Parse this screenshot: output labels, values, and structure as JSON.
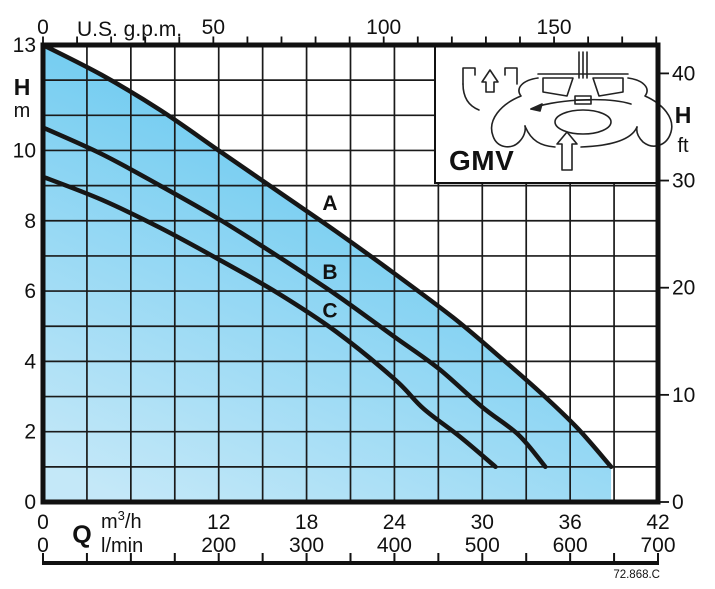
{
  "meta": {
    "model_label": "GMV",
    "ref_code": "72.868.C"
  },
  "chart_data": {
    "type": "line",
    "description": "Pump performance curves A, B, C: head H versus flow rate Q, shaded area under curve A",
    "grid": true,
    "area_fill": {
      "under_series": "A",
      "color_top": "#55C2EE",
      "color_bottom": "#C4E8F8"
    },
    "line_color": "#161616",
    "x_axes": [
      {
        "id": "gpm",
        "position": "top",
        "label": "U.S. g.p.m.",
        "labeled_ticks": [
          0,
          50,
          100,
          150
        ],
        "minor_tick_step": 10,
        "range": [
          0,
          180
        ]
      },
      {
        "id": "m3h",
        "position": "bottom",
        "symbol": "Q",
        "unit_pre": "m",
        "unit_sup": "3",
        "unit_post": "/h",
        "labeled_ticks": [
          0,
          12,
          18,
          24,
          30,
          36,
          42
        ],
        "grid_step": 3,
        "range": [
          0,
          42
        ]
      },
      {
        "id": "lmin",
        "position": "bottom",
        "unit": "l/min",
        "labeled_ticks": [
          0,
          200,
          300,
          400,
          500,
          600,
          700
        ],
        "scalebar_tick_step": 50,
        "range": [
          0,
          700
        ]
      }
    ],
    "y_axes": [
      {
        "id": "m",
        "position": "left",
        "symbol": "H",
        "unit": "m",
        "labeled_ticks": [
          13,
          10,
          8,
          6,
          4,
          2,
          0
        ],
        "grid_step": 1,
        "range": [
          0,
          13
        ]
      },
      {
        "id": "ft",
        "position": "right",
        "symbol": "H",
        "unit": "ft",
        "labeled_ticks": [
          40,
          30,
          20,
          10,
          0
        ],
        "range": [
          0,
          42.6
        ]
      }
    ],
    "series": [
      {
        "name": "A",
        "points_q_m3h_h_m": [
          [
            0,
            13
          ],
          [
            4,
            12.15
          ],
          [
            8,
            11.15
          ],
          [
            12,
            10
          ],
          [
            16,
            8.85
          ],
          [
            20,
            7.7
          ],
          [
            24,
            6.5
          ],
          [
            28,
            5.25
          ],
          [
            31,
            4.2
          ],
          [
            34,
            3.1
          ],
          [
            36.5,
            2.1
          ],
          [
            38.8,
            1
          ]
        ],
        "label_pos": {
          "q": 19.6,
          "h": 8.3
        }
      },
      {
        "name": "B",
        "points_q_m3h_h_m": [
          [
            0,
            10.65
          ],
          [
            4,
            9.9
          ],
          [
            8,
            9
          ],
          [
            12,
            8.05
          ],
          [
            16,
            7
          ],
          [
            20,
            5.9
          ],
          [
            24,
            4.7
          ],
          [
            27,
            3.8
          ],
          [
            30,
            2.7
          ],
          [
            32.5,
            1.9
          ],
          [
            34.3,
            1
          ]
        ],
        "label_pos": {
          "q": 19.6,
          "h": 6.35
        }
      },
      {
        "name": "C",
        "points_q_m3h_h_m": [
          [
            0,
            9.25
          ],
          [
            4,
            8.6
          ],
          [
            8,
            7.8
          ],
          [
            12,
            6.9
          ],
          [
            16,
            5.95
          ],
          [
            20,
            4.85
          ],
          [
            24,
            3.5
          ],
          [
            26,
            2.65
          ],
          [
            28.5,
            1.85
          ],
          [
            30.9,
            1
          ]
        ],
        "label_pos": {
          "q": 19.6,
          "h": 5.25
        }
      }
    ]
  }
}
